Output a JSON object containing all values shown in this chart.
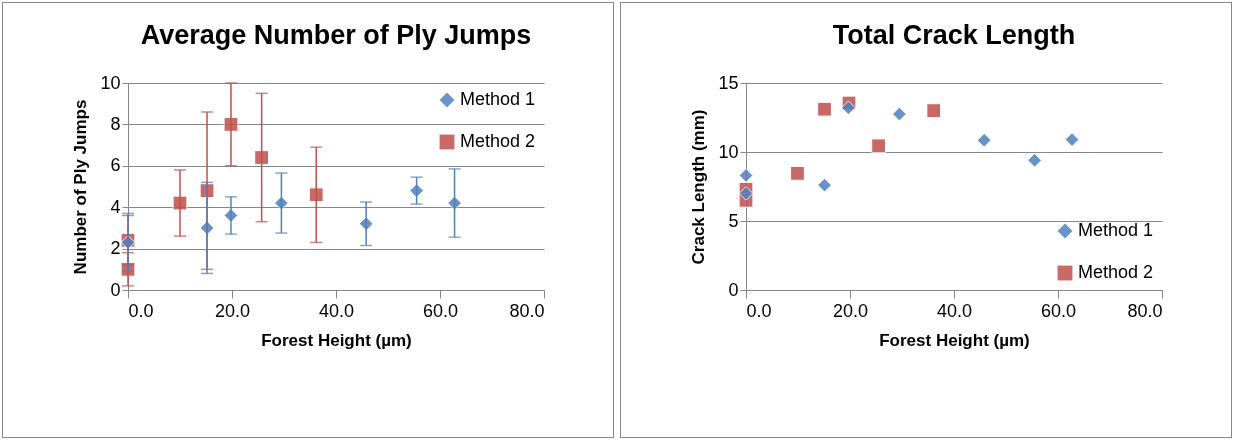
{
  "chart_data": [
    {
      "type": "scatter",
      "title": "Average Number of Ply Jumps",
      "xlabel": "Forest Height (µm)",
      "ylabel": "Number of Ply Jumps",
      "xlim": [
        0,
        80
      ],
      "xticks": [
        {
          "value": 0,
          "label": "0.0"
        },
        {
          "value": 20,
          "label": "20.0"
        },
        {
          "value": 40,
          "label": "40.0"
        },
        {
          "value": 60,
          "label": "60.0"
        },
        {
          "value": 80,
          "label": "80.0"
        }
      ],
      "ylim": [
        0,
        10
      ],
      "yticks": [
        0,
        2,
        4,
        6,
        8,
        10
      ],
      "grid": "y",
      "legend": "top right",
      "series": [
        {
          "name": "Method 1",
          "color": "#4f81bd",
          "marker": "diamond",
          "x": [
            0,
            15.2,
            19.8,
            29.5,
            45.8,
            55.5,
            62.8
          ],
          "values": [
            2.3,
            3.0,
            3.6,
            4.2,
            3.2,
            4.8,
            4.2
          ],
          "errors": [
            1.4,
            2.2,
            0.9,
            1.45,
            1.05,
            0.65,
            1.65
          ]
        },
        {
          "name": "Method 2",
          "color": "#c0504d",
          "marker": "square",
          "x": [
            0,
            0,
            10,
            15.2,
            19.8,
            25.7,
            36.2
          ],
          "values": [
            2.4,
            1.0,
            4.2,
            4.8,
            8.0,
            6.4,
            4.6
          ],
          "errors": [
            1.2,
            0.8,
            1.6,
            3.8,
            2.0,
            3.1,
            2.3
          ]
        }
      ]
    },
    {
      "type": "scatter",
      "title": "Total Crack Length",
      "xlabel": "Forest Height (µm)",
      "ylabel": "Crack Length (mm)",
      "xlim": [
        0,
        80
      ],
      "xticks": [
        {
          "value": 0,
          "label": "0.0"
        },
        {
          "value": 20,
          "label": "20.0"
        },
        {
          "value": 40,
          "label": "40.0"
        },
        {
          "value": 60,
          "label": "60.0"
        },
        {
          "value": 80,
          "label": "80.0"
        }
      ],
      "ylim": [
        0,
        15
      ],
      "yticks": [
        0,
        5,
        10,
        15
      ],
      "grid": "y",
      "legend": "bottom right",
      "series": [
        {
          "name": "Method 1",
          "color": "#4f81bd",
          "marker": "diamond",
          "x": [
            0,
            0,
            15.1,
            19.7,
            29.5,
            45.8,
            55.5,
            62.7
          ],
          "values": [
            8.3,
            7.0,
            7.6,
            13.2,
            12.75,
            10.85,
            9.4,
            10.9
          ]
        },
        {
          "name": "Method 2",
          "color": "#c0504d",
          "marker": "square",
          "x": [
            0,
            0,
            9.9,
            15.1,
            19.8,
            25.5,
            36.1
          ],
          "values": [
            7.3,
            6.5,
            8.45,
            13.1,
            13.55,
            10.45,
            13.0
          ]
        }
      ]
    }
  ]
}
